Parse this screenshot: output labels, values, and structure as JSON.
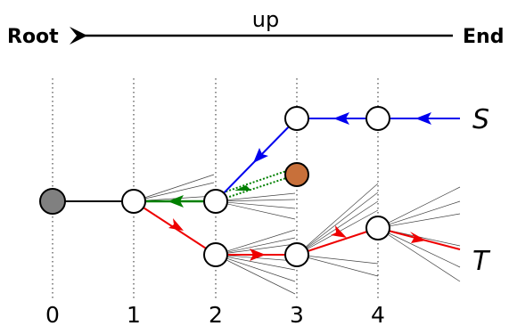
{
  "direction": {
    "label": "up",
    "left": "Root",
    "right": "End"
  },
  "levels": [
    "0",
    "1",
    "2",
    "3",
    "4"
  ],
  "paths": {
    "s": "S",
    "t": "T"
  },
  "colors": {
    "s_path": "#0000ee",
    "t_path": "#ee0000",
    "reroute": "#008000",
    "root_node": "#808080",
    "highlight_node": "#c8703a"
  }
}
